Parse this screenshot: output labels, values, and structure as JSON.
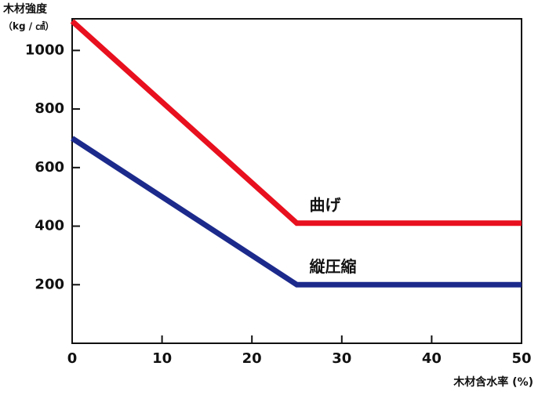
{
  "chart_data": {
    "type": "line",
    "y_label": [
      "木材強度",
      "（kg / ㎠）"
    ],
    "x_label": "木材含水率 (%)",
    "x": [
      0,
      25,
      50
    ],
    "series": [
      {
        "name": "曲げ",
        "color": "#e8101e",
        "values": [
          1100,
          410,
          410
        ]
      },
      {
        "name": "縦圧縮",
        "color": "#1c2a8c",
        "values": [
          700,
          200,
          200
        ]
      }
    ],
    "xlim": [
      0,
      50
    ],
    "xticks": [
      0,
      10,
      20,
      30,
      40,
      50
    ],
    "ylim": [
      0,
      1100
    ],
    "yticks": [
      200,
      400,
      600,
      800,
      1000
    ]
  }
}
